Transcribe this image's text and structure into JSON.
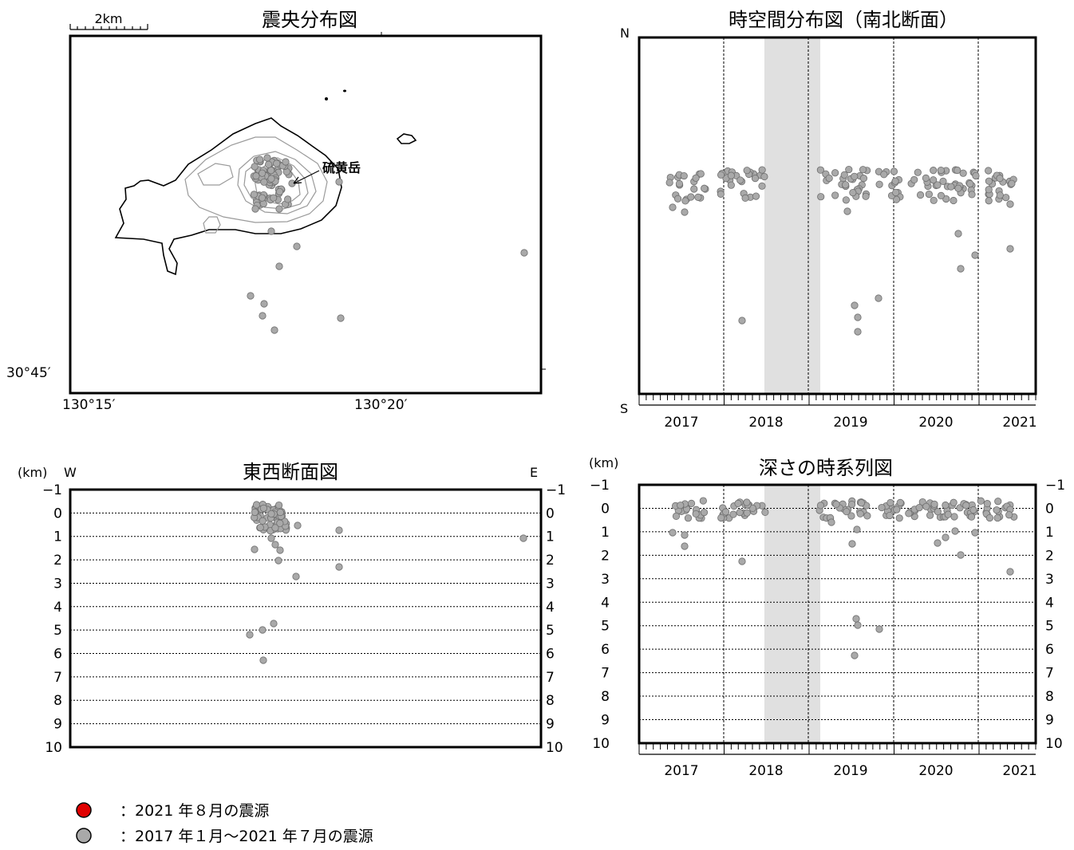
{
  "chart_data": [
    {
      "type": "scatter",
      "title": "震央分布図",
      "scale_bar": "2km",
      "xlabel": "",
      "ylabel": "",
      "x_tick_labels": [
        "130°15′",
        "130°20′"
      ],
      "y_tick_labels": [
        "30°45′"
      ],
      "annotation": "硫黄岳",
      "points_note": "epicenters around 硫黄岳 plus outliers to the south and east"
    },
    {
      "type": "scatter",
      "title": "時空間分布図（南北断面）",
      "ylabel_top": "N",
      "ylabel_bottom": "S",
      "x_tick_labels": [
        "2017",
        "2018",
        "2019",
        "2020",
        "2021"
      ],
      "shaded_interval": [
        "2018.45",
        "2019.1"
      ]
    },
    {
      "type": "scatter",
      "title": "東西断面図",
      "ylabel": "(km)",
      "left_label": "W",
      "right_label": "E",
      "y_ticks": [
        -1,
        0,
        1,
        2,
        3,
        4,
        5,
        6,
        7,
        8,
        9,
        10
      ],
      "ylim": [
        -1,
        10
      ]
    },
    {
      "type": "scatter",
      "title": "深さの時系列図",
      "ylabel": "(km)",
      "x_tick_labels": [
        "2017",
        "2018",
        "2019",
        "2020",
        "2021"
      ],
      "y_ticks": [
        -1,
        0,
        1,
        2,
        3,
        4,
        5,
        6,
        7,
        8,
        9,
        10
      ],
      "ylim": [
        -1,
        10
      ],
      "shaded_interval": [
        "2018.45",
        "2019.1"
      ]
    }
  ],
  "legend": [
    {
      "symbol": "red-circle",
      "color": "#e00000",
      "text": "：2021 年８月の震源"
    },
    {
      "symbol": "gray-circle",
      "color": "#a9a9a9",
      "text": "：2017 年１月～2021 年７月の震源"
    }
  ],
  "colors": {
    "dot": "#a9a9a9",
    "shade": "#e0e0e0"
  }
}
